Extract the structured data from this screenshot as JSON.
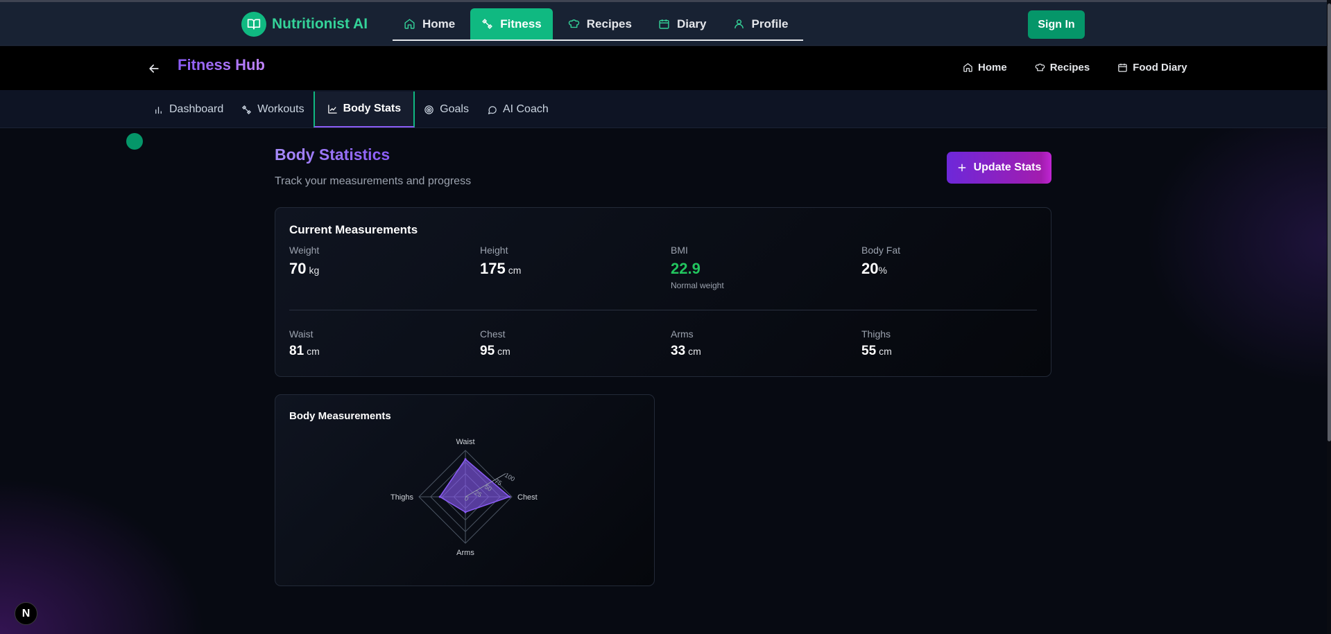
{
  "app": {
    "name": "Nutritionist AI",
    "sign_in": "Sign In"
  },
  "main_nav": [
    {
      "label": "Home",
      "icon": "home-icon"
    },
    {
      "label": "Fitness",
      "icon": "dumbbell-icon",
      "active": true
    },
    {
      "label": "Recipes",
      "icon": "chef-hat-icon"
    },
    {
      "label": "Diary",
      "icon": "calendar-icon"
    },
    {
      "label": "Profile",
      "icon": "user-icon"
    }
  ],
  "hub": {
    "title": "Fitness Hub",
    "links": [
      {
        "label": "Home",
        "icon": "home-icon"
      },
      {
        "label": "Recipes",
        "icon": "chef-hat-icon"
      },
      {
        "label": "Food Diary",
        "icon": "calendar-icon"
      }
    ]
  },
  "tabs": [
    {
      "label": "Dashboard",
      "icon": "bar-chart-icon"
    },
    {
      "label": "Workouts",
      "icon": "dumbbell-icon"
    },
    {
      "label": "Body Stats",
      "icon": "line-chart-icon",
      "active": true
    },
    {
      "label": "Goals",
      "icon": "target-icon"
    },
    {
      "label": "AI Coach",
      "icon": "chat-bubble-icon"
    }
  ],
  "section": {
    "title": "Body Statistics",
    "subtitle": "Track your measurements and progress",
    "update_button": "Update Stats"
  },
  "measurements": {
    "title": "Current Measurements",
    "primary": [
      {
        "label": "Weight",
        "value": "70",
        "unit": "kg"
      },
      {
        "label": "Height",
        "value": "175",
        "unit": "cm"
      },
      {
        "label": "BMI",
        "value": "22.9",
        "note": "Normal weight"
      },
      {
        "label": "Body Fat",
        "value": "20",
        "unit": "%"
      }
    ],
    "secondary": [
      {
        "label": "Waist",
        "value": "81",
        "unit": "cm"
      },
      {
        "label": "Chest",
        "value": "95",
        "unit": "cm"
      },
      {
        "label": "Arms",
        "value": "33",
        "unit": "cm"
      },
      {
        "label": "Thighs",
        "value": "55",
        "unit": "cm"
      }
    ]
  },
  "chart_title": "Body Measurements",
  "chart_data": {
    "type": "radar",
    "categories": [
      "Waist",
      "Chest",
      "Arms",
      "Thighs"
    ],
    "values": [
      81,
      95,
      33,
      55
    ],
    "radial_ticks": [
      "0",
      "25",
      "50",
      "75",
      "100"
    ],
    "range": [
      0,
      100
    ],
    "color": "#8b5cf6"
  },
  "colors": {
    "accent_green": "#10b981",
    "accent_purple": "#8b5cf6",
    "bmi_green": "#22c55e"
  },
  "badge": "N"
}
